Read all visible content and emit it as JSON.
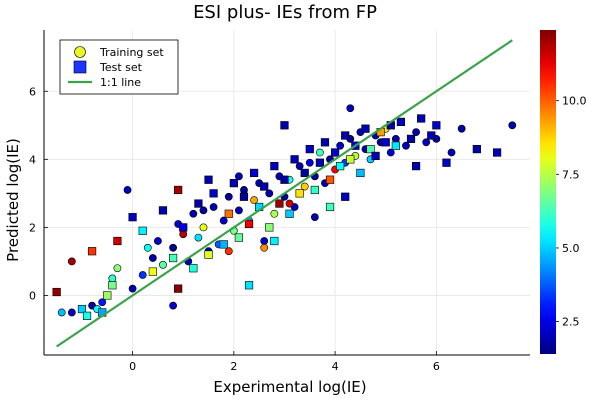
{
  "chart_data": {
    "type": "scatter",
    "title": "ESI plus- IEs from FP",
    "xlabel": "Experimental log(IE)",
    "ylabel": "Predicted log(IE)",
    "xlim": [
      -1.75,
      7.85
    ],
    "ylim": [
      -1.75,
      7.8
    ],
    "xticks": [
      0,
      2,
      4,
      6
    ],
    "yticks": [
      0,
      2,
      4,
      6
    ],
    "grid": true,
    "legend_position": "top-left",
    "legend": [
      {
        "label": "Training set",
        "marker": "circle",
        "color": "#e8f52a"
      },
      {
        "label": "Test set",
        "marker": "square",
        "color": "#1a35ff"
      },
      {
        "label": "1:1 line",
        "marker": "line",
        "color": "#3aa34a"
      }
    ],
    "colorbar": {
      "colormap": "jet",
      "range": [
        1.4,
        12.4
      ],
      "ticks": [
        2.5,
        5.0,
        7.5,
        10.0
      ],
      "tick_labels": [
        "2.5",
        "5.0",
        "7.5",
        "10.0"
      ]
    },
    "identity_line": {
      "x": [
        -1.5,
        7.5
      ],
      "y": [
        -1.5,
        7.5
      ],
      "color": "#3aa34a"
    },
    "series": [
      {
        "name": "Training set",
        "marker": "circle",
        "points": [
          [
            -1.2,
            -0.5,
            2.1
          ],
          [
            -0.8,
            -0.3,
            1.8
          ],
          [
            -0.6,
            -0.2,
            3.0
          ],
          [
            -0.4,
            0.5,
            6.0
          ],
          [
            -0.3,
            0.8,
            7.0
          ],
          [
            -0.1,
            3.1,
            2.0
          ],
          [
            0.0,
            0.2,
            1.9
          ],
          [
            0.2,
            0.6,
            3.3
          ],
          [
            0.4,
            1.1,
            1.7
          ],
          [
            0.5,
            1.6,
            2.2
          ],
          [
            0.6,
            0.9,
            6.5
          ],
          [
            0.8,
            1.4,
            1.6
          ],
          [
            0.9,
            2.1,
            2.4
          ],
          [
            1.0,
            1.8,
            11.8
          ],
          [
            1.1,
            1.0,
            2.0
          ],
          [
            1.2,
            2.4,
            1.8
          ],
          [
            1.3,
            1.7,
            5.2
          ],
          [
            1.4,
            2.0,
            8.0
          ],
          [
            1.5,
            1.3,
            2.1
          ],
          [
            1.6,
            2.6,
            1.9
          ],
          [
            1.7,
            1.5,
            3.8
          ],
          [
            1.8,
            2.2,
            2.3
          ],
          [
            1.9,
            2.9,
            1.7
          ],
          [
            2.0,
            1.9,
            6.8
          ],
          [
            2.1,
            2.5,
            2.0
          ],
          [
            2.2,
            3.1,
            1.6
          ],
          [
            2.3,
            2.2,
            4.5
          ],
          [
            2.4,
            2.8,
            9.2
          ],
          [
            2.5,
            3.3,
            1.9
          ],
          [
            2.6,
            1.6,
            2.2
          ],
          [
            2.7,
            3.0,
            1.8
          ],
          [
            2.8,
            2.4,
            7.4
          ],
          [
            2.9,
            3.5,
            2.0
          ],
          [
            3.0,
            2.9,
            1.7
          ],
          [
            3.1,
            3.4,
            5.8
          ],
          [
            3.2,
            2.6,
            2.1
          ],
          [
            3.3,
            3.8,
            1.9
          ],
          [
            3.4,
            3.2,
            8.8
          ],
          [
            3.5,
            3.9,
            2.4
          ],
          [
            3.6,
            3.5,
            1.6
          ],
          [
            3.7,
            4.2,
            6.2
          ],
          [
            3.8,
            3.3,
            2.0
          ],
          [
            3.9,
            4.0,
            1.8
          ],
          [
            4.0,
            3.7,
            11.0
          ],
          [
            4.1,
            4.4,
            2.2
          ],
          [
            4.2,
            3.9,
            3.5
          ],
          [
            4.3,
            4.6,
            1.7
          ],
          [
            4.4,
            4.1,
            7.6
          ],
          [
            4.5,
            4.8,
            2.1
          ],
          [
            4.6,
            4.3,
            1.9
          ],
          [
            4.7,
            4.0,
            5.0
          ],
          [
            4.8,
            4.7,
            2.0
          ],
          [
            4.9,
            4.5,
            1.6
          ],
          [
            5.0,
            4.9,
            8.4
          ],
          [
            5.1,
            4.2,
            2.3
          ],
          [
            5.2,
            4.6,
            1.8
          ],
          [
            5.4,
            4.4,
            2.0
          ],
          [
            5.6,
            4.8,
            1.9
          ],
          [
            5.8,
            4.5,
            2.1
          ],
          [
            6.0,
            4.6,
            1.7
          ],
          [
            6.3,
            4.2,
            2.0
          ],
          [
            6.5,
            4.9,
            1.8
          ],
          [
            7.5,
            5.0,
            1.9
          ],
          [
            4.3,
            5.5,
            2.1
          ],
          [
            3.6,
            2.3,
            1.8
          ],
          [
            2.1,
            3.5,
            2.0
          ],
          [
            1.4,
            2.5,
            1.7
          ],
          [
            0.3,
            1.4,
            5.6
          ],
          [
            -0.7,
            -0.4,
            5.5
          ],
          [
            -1.4,
            -0.5,
            4.8
          ],
          [
            -1.2,
            1.0,
            12.0
          ],
          [
            0.8,
            -0.3,
            2.2
          ],
          [
            1.9,
            1.3,
            10.5
          ],
          [
            2.6,
            1.4,
            9.5
          ],
          [
            3.1,
            2.7,
            11.5
          ]
        ]
      },
      {
        "name": "Test set",
        "marker": "square",
        "points": [
          [
            -1.5,
            0.1,
            12.2
          ],
          [
            -1.0,
            -0.4,
            5.0
          ],
          [
            -0.8,
            1.3,
            10.5
          ],
          [
            -0.6,
            -0.5,
            4.6
          ],
          [
            -0.5,
            0.0,
            7.2
          ],
          [
            -0.3,
            1.6,
            11.6
          ],
          [
            0.0,
            2.3,
            2.1
          ],
          [
            0.2,
            1.9,
            5.4
          ],
          [
            0.4,
            0.7,
            8.1
          ],
          [
            0.6,
            2.5,
            1.9
          ],
          [
            0.8,
            1.1,
            6.3
          ],
          [
            0.9,
            3.1,
            12.0
          ],
          [
            1.0,
            2.0,
            2.4
          ],
          [
            1.2,
            0.8,
            5.9
          ],
          [
            1.3,
            2.7,
            1.8
          ],
          [
            1.5,
            1.2,
            7.9
          ],
          [
            1.6,
            3.0,
            2.2
          ],
          [
            1.8,
            1.5,
            4.7
          ],
          [
            1.9,
            2.4,
            9.8
          ],
          [
            2.0,
            3.3,
            2.0
          ],
          [
            2.1,
            1.7,
            6.6
          ],
          [
            2.2,
            2.9,
            1.7
          ],
          [
            2.3,
            2.1,
            11.2
          ],
          [
            2.4,
            3.6,
            2.3
          ],
          [
            2.5,
            2.6,
            5.1
          ],
          [
            2.6,
            3.2,
            1.9
          ],
          [
            2.7,
            2.0,
            7.0
          ],
          [
            2.8,
            3.8,
            2.1
          ],
          [
            2.9,
            2.7,
            12.1
          ],
          [
            3.0,
            3.4,
            1.8
          ],
          [
            3.1,
            2.4,
            4.9
          ],
          [
            3.2,
            4.0,
            2.0
          ],
          [
            3.3,
            3.0,
            8.6
          ],
          [
            3.4,
            3.6,
            1.7
          ],
          [
            3.5,
            4.3,
            2.2
          ],
          [
            3.6,
            3.1,
            6.1
          ],
          [
            3.7,
            3.9,
            2.0
          ],
          [
            3.8,
            4.5,
            1.9
          ],
          [
            3.9,
            3.4,
            10.1
          ],
          [
            4.0,
            4.2,
            2.1
          ],
          [
            4.1,
            3.8,
            5.6
          ],
          [
            4.2,
            4.7,
            1.8
          ],
          [
            4.3,
            4.0,
            7.7
          ],
          [
            4.4,
            4.4,
            2.3
          ],
          [
            4.5,
            3.6,
            4.8
          ],
          [
            4.6,
            4.9,
            1.9
          ],
          [
            4.7,
            4.3,
            6.4
          ],
          [
            4.8,
            4.1,
            2.0
          ],
          [
            4.9,
            4.8,
            9.3
          ],
          [
            5.0,
            4.5,
            2.2
          ],
          [
            5.1,
            5.0,
            1.7
          ],
          [
            5.2,
            4.4,
            5.3
          ],
          [
            5.3,
            5.1,
            2.1
          ],
          [
            5.5,
            4.6,
            1.8
          ],
          [
            5.7,
            5.2,
            2.0
          ],
          [
            5.9,
            4.7,
            1.9
          ],
          [
            6.2,
            3.9,
            2.1
          ],
          [
            6.8,
            4.3,
            1.8
          ],
          [
            7.2,
            4.2,
            2.0
          ],
          [
            6.0,
            5.0,
            2.2
          ],
          [
            5.6,
            3.8,
            1.9
          ],
          [
            4.2,
            2.9,
            2.1
          ],
          [
            3.0,
            5.0,
            1.8
          ],
          [
            2.3,
            0.3,
            5.2
          ],
          [
            0.9,
            0.2,
            12.3
          ],
          [
            -0.4,
            0.3,
            6.8
          ],
          [
            -0.9,
            -0.6,
            5.8
          ],
          [
            1.5,
            3.4,
            1.9
          ],
          [
            2.8,
            1.6,
            5.4
          ],
          [
            3.9,
            2.6,
            6.2
          ]
        ]
      }
    ]
  }
}
